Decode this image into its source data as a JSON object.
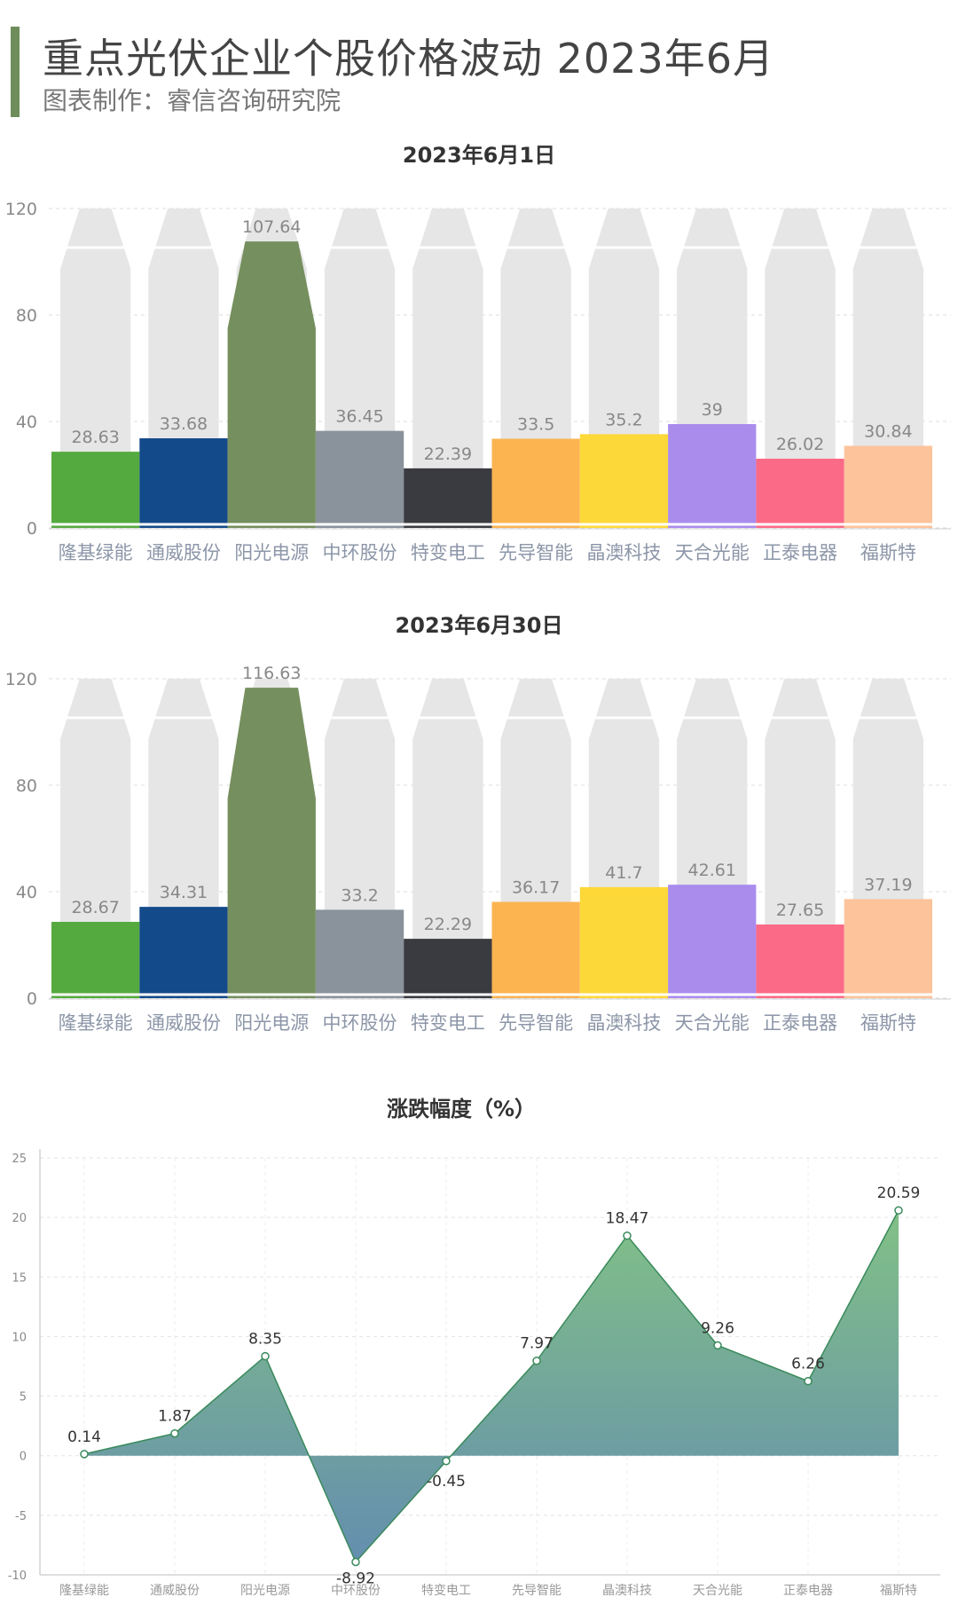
{
  "header": {
    "title": "重点光伏企业个股价格波动 2023年6月",
    "subtitle": "图表制作：睿信咨询研究院"
  },
  "colors": {
    "accent": "#6f8d5b",
    "bar_colors": [
      "#55aa3f",
      "#134a8a",
      "#758f5e",
      "#8a929b",
      "#3a3b40",
      "#fbb450",
      "#fcd838",
      "#aa8ced",
      "#fb6a86",
      "#fdc39a"
    ],
    "background_shape": "#e6e6e6",
    "axis_text": "#8a8a8a",
    "category_text": "#8c96a8",
    "area_top": "#7fc57a",
    "area_bottom": "#5b86ac",
    "line": "#3a8a5c"
  },
  "chart_data": [
    {
      "type": "bar",
      "title": "2023年6月1日",
      "categories": [
        "隆基绿能",
        "通威股份",
        "阳光电源",
        "中环股份",
        "特变电工",
        "先导智能",
        "晶澳科技",
        "天合光能",
        "正泰电器",
        "福斯特"
      ],
      "values": [
        28.63,
        33.68,
        107.64,
        36.45,
        22.39,
        33.5,
        35.2,
        39,
        26.02,
        30.84
      ],
      "value_labels": [
        "28.63",
        "33.68",
        "107.64",
        "36.45",
        "22.39",
        "33.5",
        "35.2",
        "39",
        "26.02",
        "30.84"
      ],
      "ylim": [
        0,
        120
      ],
      "yticks": [
        "0",
        "40",
        "80",
        "120"
      ],
      "ytick_values": [
        0,
        40,
        80,
        120
      ],
      "grid": true
    },
    {
      "type": "bar",
      "title": "2023年6月30日",
      "categories": [
        "隆基绿能",
        "通威股份",
        "阳光电源",
        "中环股份",
        "特变电工",
        "先导智能",
        "晶澳科技",
        "天合光能",
        "正泰电器",
        "福斯特"
      ],
      "values": [
        28.67,
        34.31,
        116.63,
        33.2,
        22.29,
        36.17,
        41.7,
        42.61,
        27.65,
        37.19
      ],
      "value_labels": [
        "28.67",
        "34.31",
        "116.63",
        "33.2",
        "22.29",
        "36.17",
        "41.7",
        "42.61",
        "27.65",
        "37.19"
      ],
      "ylim": [
        0,
        120
      ],
      "yticks": [
        "0",
        "40",
        "80",
        "120"
      ],
      "ytick_values": [
        0,
        40,
        80,
        120
      ],
      "grid": true
    },
    {
      "type": "area",
      "title": "涨跌幅度（%）",
      "categories": [
        "隆基绿能",
        "通威股份",
        "阳光电源",
        "中环股份",
        "特变电工",
        "先导智能",
        "晶澳科技",
        "天合光能",
        "正泰电器",
        "福斯特"
      ],
      "values": [
        0.14,
        1.87,
        8.35,
        -8.92,
        -0.45,
        7.97,
        18.47,
        9.26,
        6.26,
        20.59
      ],
      "value_labels": [
        "0.14",
        "1.87",
        "8.35",
        "-8.92",
        "-0.45",
        "7.97",
        "18.47",
        "9.26",
        "6.26",
        "20.59"
      ],
      "ylim": [
        -10,
        25
      ],
      "yticks": [
        "-10",
        "-5",
        "0",
        "5",
        "10",
        "15",
        "20",
        "25"
      ],
      "ytick_values": [
        -10,
        -5,
        0,
        5,
        10,
        15,
        20,
        25
      ],
      "grid": true
    }
  ]
}
